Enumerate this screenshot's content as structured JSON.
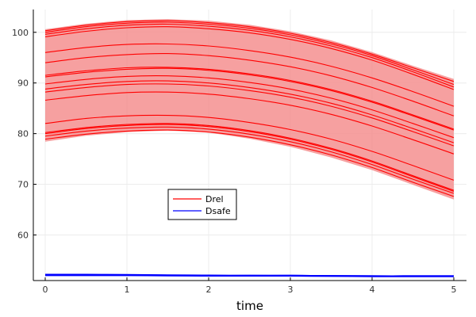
{
  "chart_data": {
    "type": "line",
    "xlabel": "time",
    "ylabel": "",
    "xlim": [
      0,
      5
    ],
    "ylim": [
      51,
      104.5
    ],
    "xticks": [
      0,
      1,
      2,
      3,
      4,
      5
    ],
    "yticks": [
      60,
      70,
      80,
      90,
      100
    ],
    "grid": true,
    "legend": {
      "placement": "center-left",
      "entries": [
        {
          "label": "Drel",
          "color": "#ff0000"
        },
        {
          "label": "Dsafe",
          "color": "#0000ff"
        }
      ]
    },
    "band": {
      "color": "#f58f8f",
      "x": [
        0,
        0.5,
        1,
        1.5,
        2,
        2.5,
        3,
        3.5,
        4,
        4.5,
        5
      ],
      "upper": [
        100.6,
        101.7,
        102.4,
        102.6,
        102.3,
        101.5,
        100.2,
        98.4,
        96.1,
        93.4,
        90.8
      ],
      "lower": [
        78.4,
        79.6,
        80.3,
        80.6,
        80.2,
        79.0,
        77.4,
        75.3,
        72.8,
        69.9,
        67.0
      ]
    },
    "x": [
      0,
      0.5,
      1,
      1.5,
      2,
      2.5,
      3,
      3.5,
      4,
      4.5,
      5
    ],
    "series": [
      {
        "name": "Drel",
        "color": "#ff0000",
        "values": [
          100.3,
          101.4,
          102.1,
          102.3,
          101.9,
          101.1,
          99.8,
          98.0,
          95.7,
          93.0,
          90.3
        ]
      },
      {
        "values": [
          100.0,
          101.1,
          101.8,
          102.0,
          101.6,
          100.8,
          99.5,
          97.7,
          95.4,
          92.6,
          89.7
        ],
        "color": "#ff0000"
      },
      {
        "values": [
          99.6,
          100.7,
          101.4,
          101.6,
          101.2,
          100.4,
          99.1,
          97.3,
          95.0,
          92.2,
          89.2
        ],
        "color": "#ff0000"
      },
      {
        "values": [
          99.1,
          100.2,
          100.9,
          101.1,
          100.7,
          99.9,
          98.6,
          96.8,
          94.5,
          91.7,
          88.7
        ],
        "color": "#ff0000"
      },
      {
        "values": [
          96.0,
          97.0,
          97.6,
          97.7,
          97.3,
          96.4,
          95.1,
          93.3,
          91.0,
          88.3,
          85.4
        ],
        "color": "#ff0000"
      },
      {
        "values": [
          94.0,
          95.0,
          95.6,
          95.8,
          95.4,
          94.5,
          93.2,
          91.4,
          89.1,
          86.4,
          83.5
        ],
        "color": "#ff0000"
      },
      {
        "values": [
          91.5,
          92.4,
          93.0,
          93.1,
          92.7,
          91.8,
          90.5,
          88.7,
          86.4,
          83.7,
          80.9
        ],
        "color": "#ff0000"
      },
      {
        "values": [
          91.2,
          92.1,
          92.7,
          92.9,
          92.5,
          91.6,
          90.3,
          88.5,
          86.2,
          83.5,
          80.7
        ],
        "color": "#ff0000"
      },
      {
        "values": [
          89.8,
          90.7,
          91.3,
          91.4,
          91.0,
          90.1,
          88.8,
          87.0,
          84.7,
          82.0,
          79.2
        ],
        "color": "#ff0000"
      },
      {
        "values": [
          88.8,
          89.7,
          90.3,
          90.4,
          90.0,
          89.1,
          87.8,
          86.0,
          83.7,
          81.0,
          78.2
        ],
        "color": "#ff0000"
      },
      {
        "values": [
          88.2,
          89.1,
          89.7,
          89.8,
          89.4,
          88.5,
          87.2,
          85.4,
          83.1,
          80.4,
          77.6
        ],
        "color": "#ff0000"
      },
      {
        "values": [
          86.6,
          87.5,
          88.1,
          88.2,
          87.8,
          86.9,
          85.6,
          83.8,
          81.5,
          78.8,
          76.0
        ],
        "color": "#ff0000"
      },
      {
        "values": [
          82.0,
          83.0,
          83.5,
          83.6,
          83.2,
          82.2,
          80.8,
          78.9,
          76.5,
          73.7,
          70.8
        ],
        "color": "#ff0000"
      },
      {
        "values": [
          80.2,
          81.2,
          81.8,
          82.0,
          81.6,
          80.6,
          79.1,
          77.1,
          74.6,
          71.7,
          68.8
        ],
        "color": "#ff0000"
      },
      {
        "values": [
          80.0,
          81.0,
          81.6,
          81.8,
          81.4,
          80.4,
          78.9,
          76.9,
          74.4,
          71.5,
          68.6
        ],
        "color": "#ff0000"
      },
      {
        "values": [
          79.5,
          80.5,
          81.1,
          81.3,
          80.9,
          79.9,
          78.4,
          76.4,
          73.9,
          71.0,
          68.2
        ],
        "color": "#ff0000"
      },
      {
        "values": [
          78.9,
          79.9,
          80.5,
          80.7,
          80.3,
          79.3,
          77.8,
          75.8,
          73.3,
          70.4,
          67.6
        ],
        "color": "#ff0000"
      },
      {
        "name": "Dsafe",
        "color": "#0000ff",
        "values": [
          52.1,
          52.1,
          52.1,
          52.05,
          52.0,
          52.0,
          52.0,
          51.95,
          51.9,
          51.9,
          51.9
        ]
      },
      {
        "values": [
          52.0,
          52.0,
          52.0,
          51.95,
          51.9,
          51.9,
          51.9,
          51.85,
          51.8,
          51.8,
          51.8
        ],
        "color": "#0000ff"
      },
      {
        "values": [
          52.2,
          52.2,
          52.15,
          52.1,
          52.05,
          52.0,
          52.0,
          51.95,
          51.9,
          51.9,
          51.9
        ],
        "color": "#0000ff"
      }
    ]
  }
}
